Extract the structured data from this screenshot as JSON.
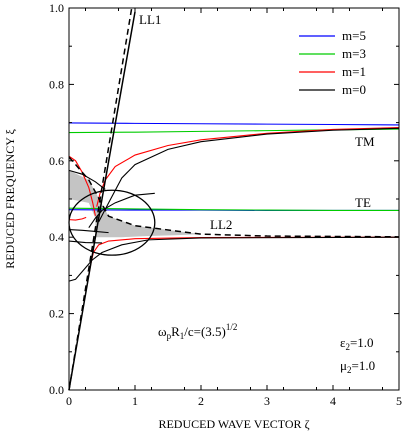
{
  "chart_data": {
    "type": "line",
    "title": "",
    "xlabel": "REDUCED WAVE VECTOR  ζ",
    "ylabel": "REDUCED FREQUENCY  ξ",
    "xlim": [
      0,
      5
    ],
    "ylim": [
      0,
      1.0
    ],
    "x_ticks": [
      0,
      1,
      2,
      3,
      4,
      5
    ],
    "x_tick_labels": [
      "0",
      "1",
      "2",
      "3",
      "4",
      "5"
    ],
    "y_ticks": [
      0.0,
      0.2,
      0.4,
      0.6,
      0.8,
      1.0
    ],
    "y_tick_labels": [
      "0.0",
      "0.2",
      "0.4",
      "0.6",
      "0.8",
      "1.0"
    ],
    "grid": false,
    "legend_position": "top-right",
    "legend": [
      {
        "name": "m=5",
        "color": "#0000ff"
      },
      {
        "name": "m=3",
        "color": "#00cc00"
      },
      {
        "name": "m=1",
        "color": "#ff0000"
      },
      {
        "name": "m=0",
        "color": "#000000"
      }
    ],
    "annotations": {
      "ll1": "LL1",
      "ll2": "LL2",
      "tm": "TM",
      "te": "TE",
      "param_base": "ω",
      "param_sub1": "p",
      "param_mid": "R",
      "param_sub2": "1",
      "param_end": "/c=(3.5)",
      "param_sup": "1/2",
      "eps_base": "ε",
      "eps_sub": "2",
      "eps_val": "=1.0",
      "mu_base": "μ",
      "mu_sub": "2",
      "mu_val": "=1.0"
    },
    "series": [
      {
        "name": "m=5",
        "color": "#0000ff",
        "points": [
          [
            0,
            0.699
          ],
          [
            1,
            0.698
          ],
          [
            2,
            0.697
          ],
          [
            3,
            0.696
          ],
          [
            4,
            0.695
          ],
          [
            5,
            0.694
          ]
        ]
      },
      {
        "name": "m=5",
        "color": "#0000ff",
        "points": [
          [
            0,
            0.472
          ],
          [
            1,
            0.471
          ],
          [
            2,
            0.471
          ],
          [
            3,
            0.47
          ],
          [
            4,
            0.47
          ],
          [
            5,
            0.47
          ]
        ]
      },
      {
        "name": "m=3",
        "color": "#00cc00",
        "points": [
          [
            0,
            0.674
          ],
          [
            1,
            0.675
          ],
          [
            2,
            0.677
          ],
          [
            3,
            0.679
          ],
          [
            4,
            0.681
          ],
          [
            5,
            0.683
          ]
        ]
      },
      {
        "name": "m=3",
        "color": "#00cc00",
        "points": [
          [
            0,
            0.476
          ],
          [
            1,
            0.474
          ],
          [
            2,
            0.472
          ],
          [
            3,
            0.471
          ],
          [
            4,
            0.47
          ],
          [
            5,
            0.47
          ]
        ]
      },
      {
        "name": "m=1",
        "color": "#ff0000",
        "points": [
          [
            0,
            0.612
          ],
          [
            0.1,
            0.6
          ],
          [
            0.2,
            0.57
          ],
          [
            0.3,
            0.53
          ],
          [
            0.36,
            0.49
          ],
          [
            0.4,
            0.456
          ]
        ]
      },
      {
        "name": "m=1",
        "color": "#ff0000",
        "points": [
          [
            0.42,
            0.48
          ],
          [
            0.47,
            0.515
          ],
          [
            0.55,
            0.55
          ],
          [
            0.7,
            0.585
          ],
          [
            1.0,
            0.615
          ],
          [
            1.5,
            0.64
          ],
          [
            2,
            0.655
          ],
          [
            3,
            0.672
          ],
          [
            4,
            0.682
          ],
          [
            5,
            0.687
          ]
        ]
      },
      {
        "name": "m=1",
        "color": "#ff0000",
        "points": [
          [
            0,
            0.446
          ],
          [
            0.1,
            0.445
          ],
          [
            0.2,
            0.448
          ],
          [
            0.26,
            0.452
          ]
        ]
      },
      {
        "name": "m=1",
        "color": "#ff0000",
        "points": [
          [
            0.3,
            0.3
          ],
          [
            0.33,
            0.33
          ],
          [
            0.37,
            0.36
          ],
          [
            0.45,
            0.38
          ],
          [
            0.6,
            0.39
          ],
          [
            1.0,
            0.396
          ],
          [
            2,
            0.399
          ],
          [
            5,
            0.4
          ]
        ]
      },
      {
        "name": "m=0",
        "color": "#000000",
        "points": [
          [
            0,
            0.575
          ],
          [
            0.2,
            0.565
          ],
          [
            0.4,
            0.545
          ],
          [
            0.55,
            0.525
          ]
        ]
      },
      {
        "name": "m=0",
        "color": "#000000",
        "points": [
          [
            0.45,
            0.44
          ],
          [
            0.6,
            0.49
          ],
          [
            0.8,
            0.555
          ],
          [
            1.0,
            0.59
          ],
          [
            1.5,
            0.63
          ],
          [
            2,
            0.65
          ],
          [
            3,
            0.67
          ],
          [
            4,
            0.68
          ],
          [
            5,
            0.685
          ]
        ]
      },
      {
        "name": "m=0",
        "color": "#000000",
        "points": [
          [
            0,
            0.42
          ],
          [
            0.2,
            0.418
          ],
          [
            0.4,
            0.415
          ],
          [
            0.6,
            0.412
          ]
        ]
      },
      {
        "name": "m=0",
        "color": "#000000",
        "points": [
          [
            0,
            0.39
          ],
          [
            0.25,
            0.386
          ],
          [
            0.5,
            0.385
          ]
        ]
      },
      {
        "name": "m=0",
        "color": "#000000",
        "points": [
          [
            0,
            0.285
          ],
          [
            0.1,
            0.29
          ],
          [
            0.2,
            0.31
          ],
          [
            0.35,
            0.34
          ],
          [
            0.5,
            0.36
          ],
          [
            0.8,
            0.38
          ],
          [
            1.2,
            0.393
          ],
          [
            2,
            0.398
          ],
          [
            5,
            0.4
          ]
        ]
      },
      {
        "name": "m=0",
        "color": "#000000",
        "points": [
          [
            0.3,
            0.425
          ],
          [
            0.4,
            0.45
          ],
          [
            0.5,
            0.47
          ],
          [
            0.7,
            0.49
          ],
          [
            1.0,
            0.51
          ],
          [
            1.3,
            0.515
          ]
        ]
      },
      {
        "name": "LL1",
        "color": "#000000",
        "style": "solid",
        "points": [
          [
            0,
            0
          ],
          [
            0.5,
            0.5
          ],
          [
            1.0,
            0.99
          ]
        ]
      },
      {
        "name": "LL1",
        "color": "#000000",
        "style": "dashed",
        "points": [
          [
            0,
            0
          ],
          [
            0.5,
            0.53
          ],
          [
            0.95,
            1.0
          ]
        ]
      },
      {
        "name": "LL2",
        "color": "#000000",
        "style": "dashed",
        "points": [
          [
            0,
            0.61
          ],
          [
            0.3,
            0.55
          ],
          [
            0.6,
            0.455
          ],
          [
            1.0,
            0.43
          ],
          [
            2,
            0.408
          ],
          [
            3,
            0.403
          ],
          [
            5,
            0.401
          ]
        ]
      }
    ],
    "shaded_region": [
      [
        0,
        0.575
      ],
      [
        0.3,
        0.55
      ],
      [
        0.6,
        0.455
      ],
      [
        1.0,
        0.43
      ],
      [
        2,
        0.408
      ],
      [
        1.6,
        0.405
      ],
      [
        1.2,
        0.403
      ],
      [
        0.8,
        0.4
      ],
      [
        0.4,
        0.4
      ],
      [
        0.4,
        0.45
      ],
      [
        0.3,
        0.49
      ],
      [
        0,
        0.5
      ]
    ],
    "circle": {
      "cx": 0.65,
      "cy": 0.438,
      "rx": 0.65,
      "ry": 0.085
    }
  }
}
